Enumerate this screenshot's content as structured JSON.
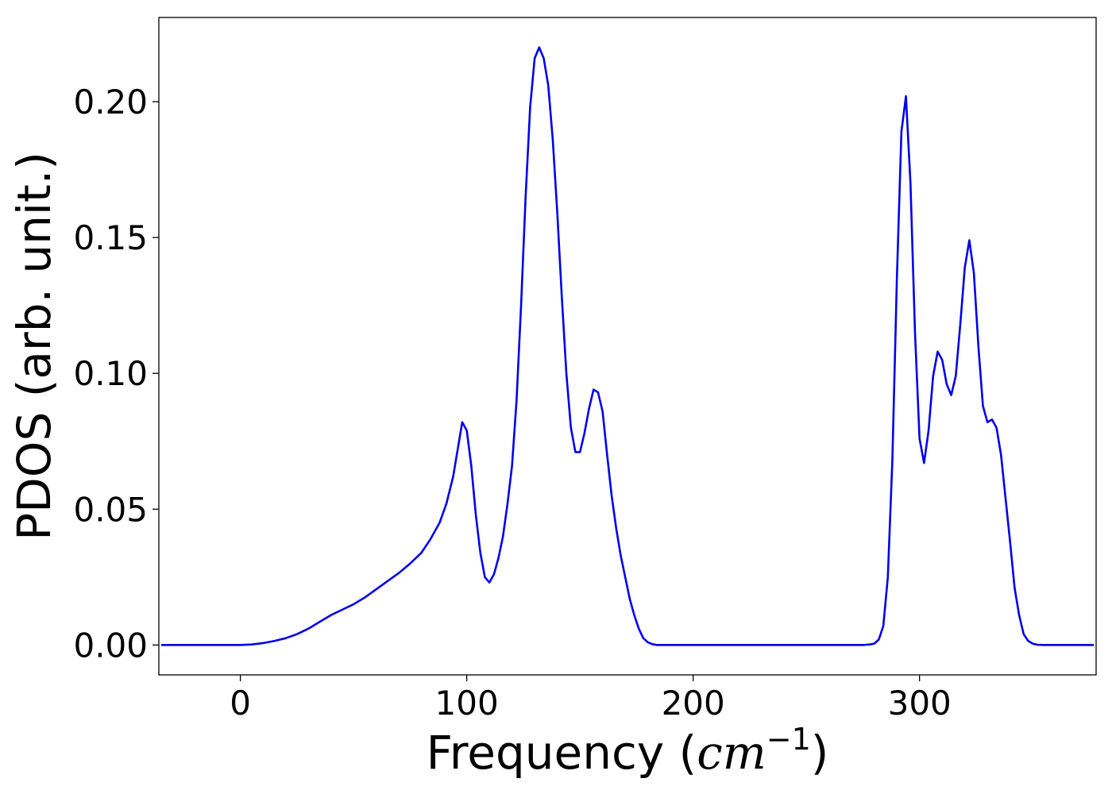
{
  "chart_data": {
    "type": "line",
    "title": "",
    "xlabel": {
      "prefix": "Frequency (",
      "math": "cm",
      "sup": "−1",
      "suffix": ")"
    },
    "ylabel": "PDOS (arb. unit.)",
    "xlim": [
      -36,
      378
    ],
    "ylim": [
      -0.011,
      0.231
    ],
    "xticks": [
      0,
      100,
      200,
      300
    ],
    "xtick_labels": [
      "0",
      "100",
      "200",
      "300"
    ],
    "yticks": [
      0.0,
      0.05,
      0.1,
      0.15,
      0.2
    ],
    "ytick_labels": [
      "0.00",
      "0.05",
      "0.10",
      "0.15",
      "0.20"
    ],
    "grid": false,
    "legend": "none",
    "series": [
      {
        "color": "#0000ee",
        "x": [
          -35,
          -20,
          -10,
          0,
          5,
          10,
          15,
          20,
          25,
          30,
          35,
          40,
          45,
          50,
          55,
          60,
          65,
          70,
          75,
          80,
          84,
          88,
          91,
          94,
          96,
          98,
          100,
          102,
          104,
          106,
          108,
          110,
          112,
          114,
          116,
          118,
          120,
          122,
          124,
          126,
          128,
          130,
          132,
          134,
          136,
          138,
          140,
          142,
          144,
          146,
          148,
          150,
          152,
          154,
          156,
          158,
          160,
          162,
          164,
          166,
          168,
          170,
          172,
          174,
          176,
          178,
          180,
          182,
          184,
          186,
          190,
          200,
          250,
          275,
          278,
          280,
          282,
          284,
          286,
          288,
          290,
          292,
          294,
          296,
          298,
          300,
          302,
          304,
          306,
          308,
          310,
          312,
          314,
          316,
          318,
          320,
          322,
          324,
          326,
          328,
          330,
          332,
          334,
          336,
          338,
          340,
          342,
          344,
          346,
          348,
          350,
          352,
          355,
          360,
          377
        ],
        "y": [
          0,
          0,
          0,
          0,
          0.0002,
          0.0007,
          0.0015,
          0.0025,
          0.004,
          0.006,
          0.0085,
          0.011,
          0.013,
          0.015,
          0.0175,
          0.0205,
          0.0235,
          0.0265,
          0.03,
          0.034,
          0.039,
          0.045,
          0.052,
          0.062,
          0.072,
          0.082,
          0.079,
          0.066,
          0.048,
          0.034,
          0.025,
          0.023,
          0.026,
          0.032,
          0.04,
          0.052,
          0.066,
          0.09,
          0.125,
          0.165,
          0.198,
          0.216,
          0.22,
          0.216,
          0.206,
          0.186,
          0.159,
          0.128,
          0.1,
          0.08,
          0.071,
          0.071,
          0.078,
          0.087,
          0.094,
          0.093,
          0.086,
          0.07,
          0.055,
          0.043,
          0.033,
          0.025,
          0.017,
          0.011,
          0.006,
          0.0025,
          0.001,
          0.0003,
          0,
          0,
          0,
          0,
          0,
          0,
          0.0002,
          0.0005,
          0.002,
          0.007,
          0.025,
          0.068,
          0.135,
          0.189,
          0.202,
          0.17,
          0.115,
          0.076,
          0.067,
          0.079,
          0.099,
          0.108,
          0.105,
          0.096,
          0.092,
          0.099,
          0.118,
          0.139,
          0.149,
          0.137,
          0.11,
          0.088,
          0.082,
          0.083,
          0.08,
          0.07,
          0.054,
          0.038,
          0.021,
          0.011,
          0.004,
          0.0015,
          0.0005,
          0.0001,
          0,
          0,
          0
        ]
      }
    ]
  }
}
